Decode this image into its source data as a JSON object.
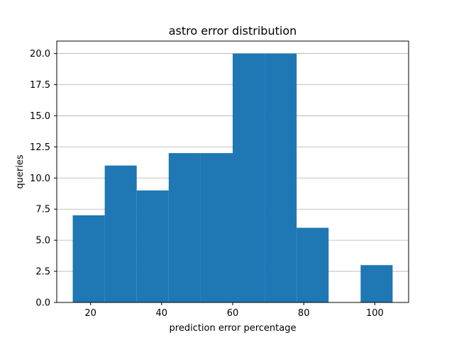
{
  "chart_data": {
    "type": "bar",
    "title": "astro error distribution",
    "xlabel": "prediction error percentage",
    "ylabel": "queries",
    "bin_edges": [
      15,
      24,
      33,
      42,
      51,
      60,
      69,
      78,
      87,
      96,
      105
    ],
    "counts": [
      7,
      11,
      9,
      12,
      12,
      20,
      20,
      6,
      0,
      3
    ],
    "xlim": [
      10.5,
      109.5
    ],
    "ylim": [
      0,
      21
    ],
    "xticks": [
      20,
      40,
      60,
      80,
      100
    ],
    "yticks": [
      0.0,
      2.5,
      5.0,
      7.5,
      10.0,
      12.5,
      15.0,
      17.5,
      20.0
    ],
    "xtick_labels": [
      "20",
      "40",
      "60",
      "80",
      "100"
    ],
    "ytick_labels": [
      "0.0",
      "2.5",
      "5.0",
      "7.5",
      "10.0",
      "12.5",
      "15.0",
      "17.5",
      "20.0"
    ],
    "grid": "y",
    "bar_color": "#1f77b4",
    "grid_color": "#b0b0b0"
  }
}
